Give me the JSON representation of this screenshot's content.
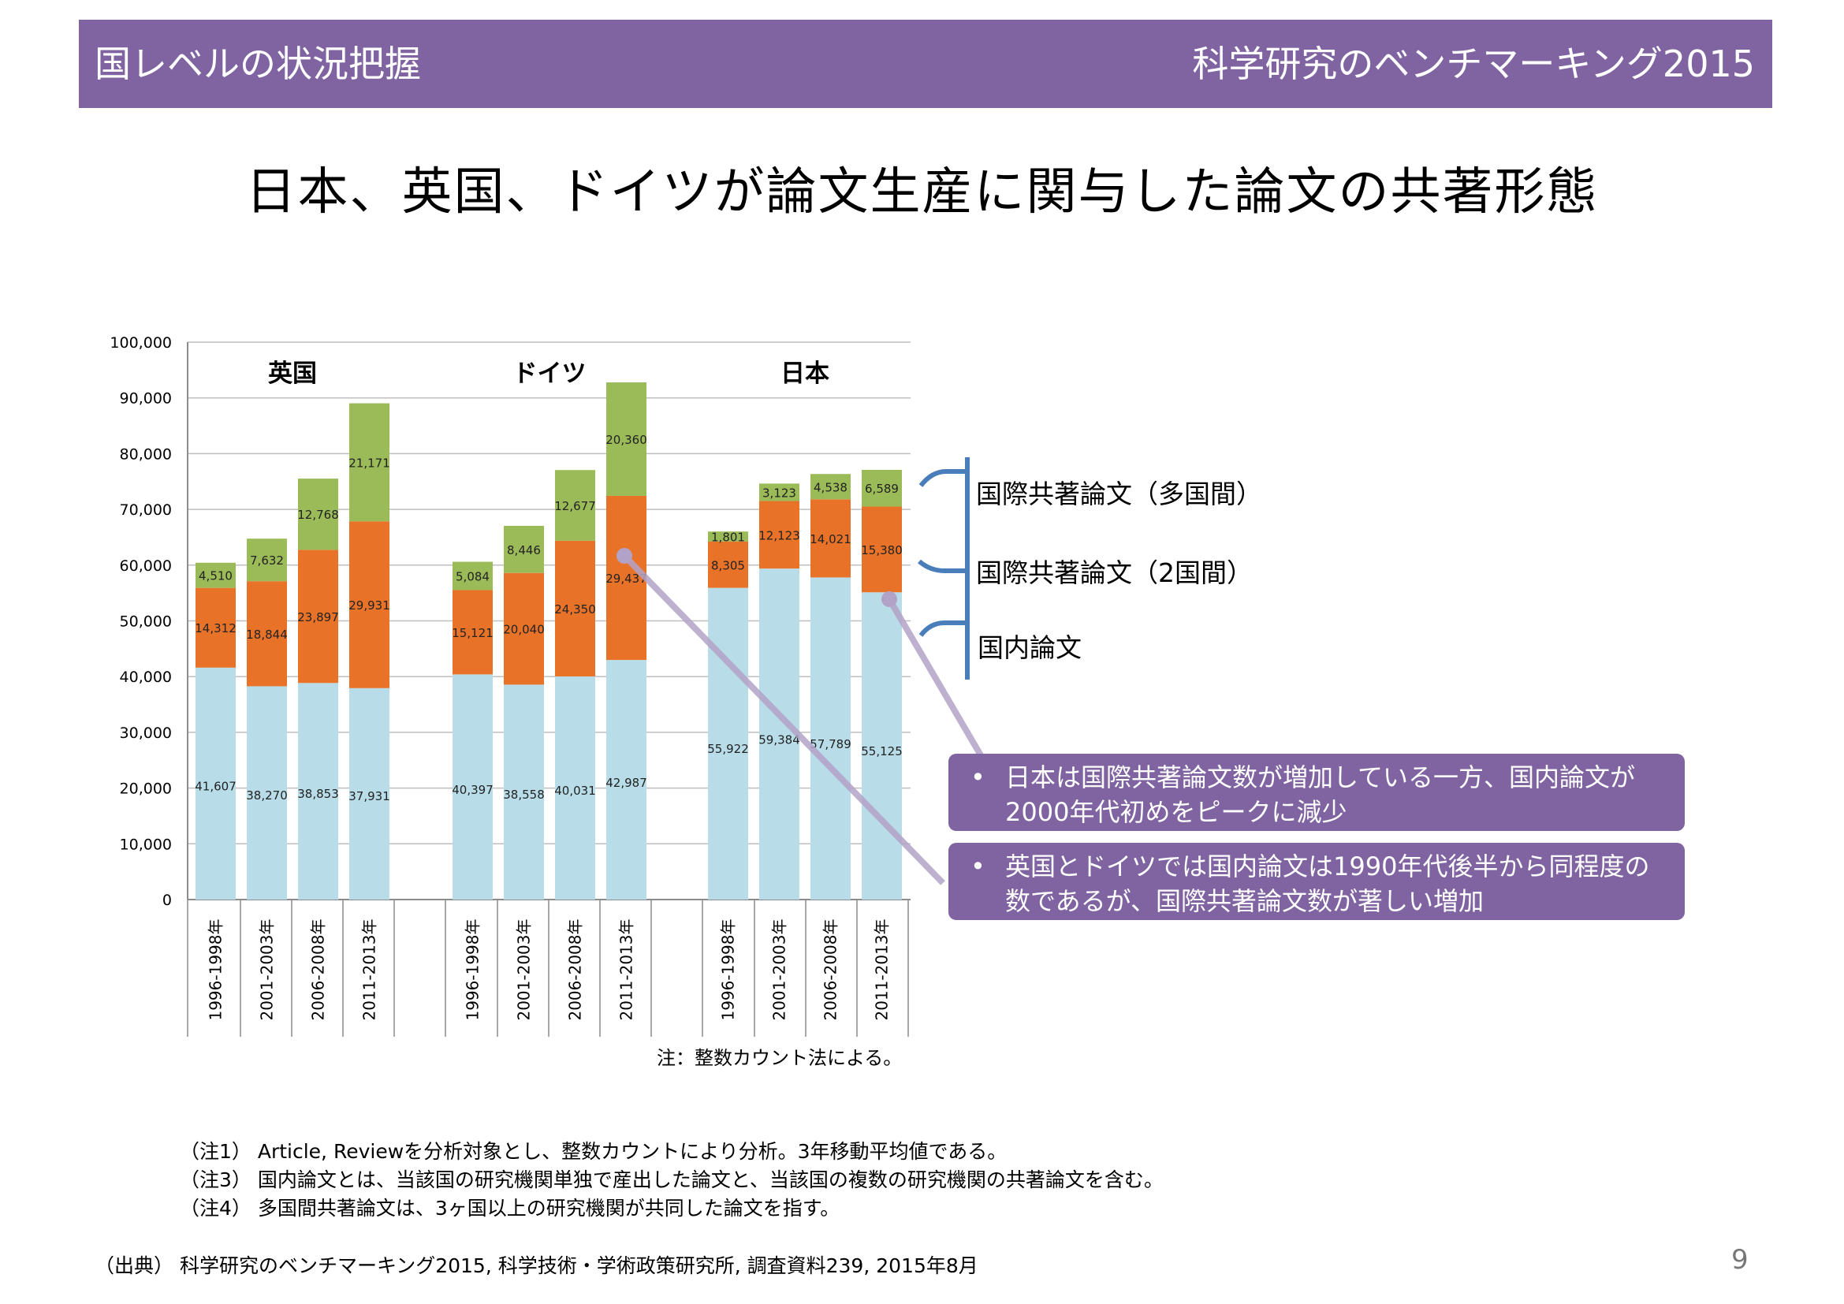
{
  "header": {
    "left": "国レベルの状況把握",
    "right": "科学研究のベンチマーキング2015"
  },
  "title": "日本、英国、ドイツが論文生産に関与した論文の共著形態",
  "colors": {
    "header_bg": "#8064a2",
    "domestic": "#b8dde9",
    "bilateral": "#e87328",
    "multilateral": "#9bbb59",
    "bracket": "#4a7ebb",
    "callout_bg": "#8064a2",
    "callout_line": "#b3a2c7"
  },
  "chart_data": {
    "type": "bar",
    "stacked": true,
    "ylim": [
      0,
      100000
    ],
    "yticks": [
      "0",
      "10,000",
      "20,000",
      "30,000",
      "40,000",
      "50,000",
      "60,000",
      "70,000",
      "80,000",
      "90,000",
      "100,000"
    ],
    "categories": [
      "1996-1998年",
      "2001-2003年",
      "2006-2008年",
      "2011-2013年"
    ],
    "groups": [
      {
        "name": "英国",
        "series": [
          {
            "name": "国内論文",
            "values": [
              41607,
              38270,
              38853,
              37931
            ],
            "labels": [
              "41,607",
              "38,270",
              "38,853",
              "37,931"
            ]
          },
          {
            "name": "国際共著論文（2国間）",
            "values": [
              14312,
              18844,
              23897,
              29931
            ],
            "labels": [
              "14,312",
              "18,844",
              "23,897",
              "29,931"
            ]
          },
          {
            "name": "国際共著論文（多国間）",
            "values": [
              4510,
              7632,
              12768,
              21171
            ],
            "labels": [
              "4,510",
              "7,632",
              "12,768",
              "21,171"
            ]
          }
        ]
      },
      {
        "name": "ドイツ",
        "series": [
          {
            "name": "国内論文",
            "values": [
              40397,
              38558,
              40031,
              42987
            ],
            "labels": [
              "40,397",
              "38,558",
              "40,031",
              "42,987"
            ]
          },
          {
            "name": "国際共著論文（2国間）",
            "values": [
              15121,
              20040,
              24350,
              29437
            ],
            "labels": [
              "15,121",
              "20,040",
              "24,350",
              "29,437"
            ]
          },
          {
            "name": "国際共著論文（多国間）",
            "values": [
              5084,
              8446,
              12677,
              20360
            ],
            "labels": [
              "5,084",
              "8,446",
              "12,677",
              "20,360"
            ]
          }
        ]
      },
      {
        "name": "日本",
        "series": [
          {
            "name": "国内論文",
            "values": [
              55922,
              59384,
              57789,
              55125
            ],
            "labels": [
              "55,922",
              "59,384",
              "57,789",
              "55,125"
            ]
          },
          {
            "name": "国際共著論文（2国間）",
            "values": [
              8305,
              12123,
              14021,
              15380
            ],
            "labels": [
              "8,305",
              "12,123",
              "14,021",
              "15,380"
            ]
          },
          {
            "name": "国際共著論文（多国間）",
            "values": [
              1801,
              3123,
              4538,
              6589
            ],
            "labels": [
              "1,801",
              "3,123",
              "4,538",
              "6,589"
            ]
          }
        ]
      }
    ],
    "legend": [
      "国際共著論文（多国間）",
      "国際共著論文（2国間）",
      "国内論文"
    ],
    "legend_position": "right"
  },
  "callouts": [
    {
      "bullet": "•",
      "text": "日本は国際共著論文数が増加している一方、国内論文が2000年代初めをピークに減少"
    },
    {
      "bullet": "•",
      "text": "英国とドイツでは国内論文は1990年代後半から同程度の数であるが、国際共著論文数が著しい増加"
    }
  ],
  "chart_note": "注：整数カウント法による。",
  "notes": [
    "（注1） Article, Reviewを分析対象とし、整数カウントにより分析。3年移動平均値である。",
    "（注3） 国内論文とは、当該国の研究機関単独で産出した論文と、当該国の複数の研究機関の共著論文を含む。",
    "（注4） 多国間共著論文は、3ヶ国以上の研究機関が共同した論文を指す。"
  ],
  "source": "（出典） 科学研究のベンチマーキング2015, 科学技術・学術政策研究所, 調査資料239, 2015年8月",
  "page_number": "9"
}
